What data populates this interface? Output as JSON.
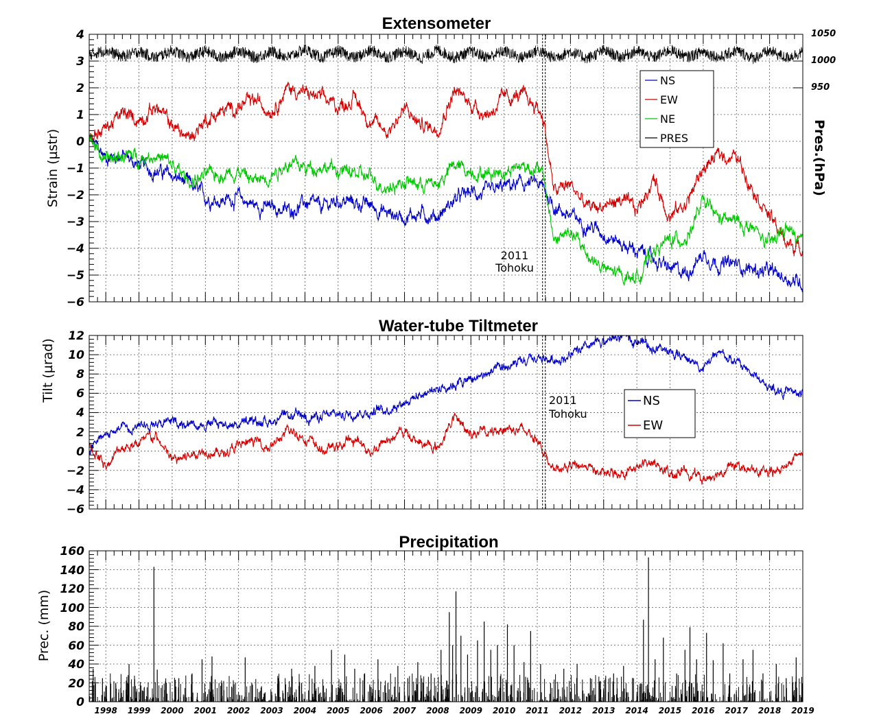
{
  "chart_data": [
    {
      "type": "line",
      "title": "Extensometer",
      "ylabel": "Strain (µstr)",
      "y2label": "Pres.(hPa)",
      "ylim": [
        -6,
        4
      ],
      "y2lim": [
        910,
        1050
      ],
      "xlim": [
        1997.5,
        2019.0
      ],
      "grid": true,
      "legend_position": "top-right",
      "y_ticks": [
        "4",
        "3",
        "2",
        "1",
        "0",
        "−1",
        "−2",
        "−3",
        "−4",
        "−5",
        "−6"
      ],
      "y2_ticks": [
        "1050",
        "1000",
        "950"
      ],
      "annotation": {
        "line1": "2011",
        "line2": "Tohoku",
        "x": 2011.2
      },
      "series": [
        {
          "name": "NS",
          "color": "#0000c8",
          "x": [
            1997.5,
            1998.0,
            1998.5,
            1999.0,
            1999.5,
            2000.0,
            2000.5,
            2001.0,
            2001.5,
            2002.0,
            2002.5,
            2003.0,
            2003.5,
            2004.0,
            2004.5,
            2005.0,
            2005.5,
            2006.0,
            2006.5,
            2007.0,
            2007.5,
            2008.0,
            2008.5,
            2009.0,
            2009.5,
            2010.0,
            2010.5,
            2011.0,
            2011.2,
            2011.5,
            2012.0,
            2012.5,
            2013.0,
            2013.5,
            2014.0,
            2014.5,
            2015.0,
            2015.5,
            2016.0,
            2016.5,
            2017.0,
            2017.5,
            2018.0,
            2018.5,
            2019.0
          ],
          "y": [
            0.1,
            -0.6,
            -0.5,
            -0.9,
            -1.1,
            -1.3,
            -1.6,
            -2.1,
            -2.2,
            -2.1,
            -2.4,
            -2.5,
            -2.6,
            -2.3,
            -2.5,
            -2.2,
            -2.3,
            -2.4,
            -2.7,
            -2.8,
            -2.7,
            -2.8,
            -2.2,
            -1.9,
            -2.0,
            -1.7,
            -1.6,
            -1.6,
            -1.8,
            -2.4,
            -2.8,
            -3.1,
            -3.4,
            -3.8,
            -4.1,
            -4.4,
            -4.8,
            -4.9,
            -4.2,
            -4.6,
            -4.6,
            -4.8,
            -4.9,
            -5.1,
            -5.3
          ]
        },
        {
          "name": "EW",
          "color": "#d20000",
          "x": [
            1997.5,
            1998.0,
            1998.5,
            1999.0,
            1999.5,
            2000.0,
            2000.5,
            2001.0,
            2001.5,
            2002.0,
            2002.5,
            2003.0,
            2003.5,
            2004.0,
            2004.5,
            2005.0,
            2005.5,
            2006.0,
            2006.5,
            2007.0,
            2007.5,
            2008.0,
            2008.5,
            2009.0,
            2009.5,
            2010.0,
            2010.5,
            2011.0,
            2011.2,
            2011.5,
            2012.0,
            2012.5,
            2013.0,
            2013.5,
            2014.0,
            2014.5,
            2015.0,
            2015.5,
            2016.0,
            2016.5,
            2017.0,
            2017.5,
            2018.0,
            2018.5,
            2019.0
          ],
          "y": [
            0.2,
            0.5,
            1.0,
            0.8,
            1.3,
            0.6,
            0.1,
            0.8,
            1.1,
            1.3,
            1.5,
            1.2,
            2.0,
            1.8,
            1.6,
            1.3,
            1.6,
            0.7,
            0.4,
            1.2,
            0.6,
            0.5,
            1.9,
            1.4,
            1.0,
            1.6,
            1.7,
            1.3,
            0.8,
            -1.9,
            -1.6,
            -2.5,
            -2.4,
            -2.2,
            -2.6,
            -1.4,
            -2.8,
            -2.3,
            -1.0,
            -0.5,
            -0.6,
            -1.7,
            -2.8,
            -3.8,
            -4.0
          ]
        },
        {
          "name": "NE",
          "color": "#00c800",
          "x": [
            1997.5,
            1998.0,
            1998.5,
            1999.0,
            1999.5,
            2000.0,
            2000.5,
            2001.0,
            2001.5,
            2002.0,
            2002.5,
            2003.0,
            2003.5,
            2004.0,
            2004.5,
            2005.0,
            2005.5,
            2006.0,
            2006.5,
            2007.0,
            2007.5,
            2008.0,
            2008.5,
            2009.0,
            2009.5,
            2010.0,
            2010.5,
            2011.0,
            2011.2,
            2011.5,
            2012.0,
            2012.5,
            2013.0,
            2013.5,
            2014.0,
            2014.5,
            2015.0,
            2015.5,
            2016.0,
            2016.5,
            2017.0,
            2017.5,
            2018.0,
            2018.5,
            2019.0
          ],
          "y": [
            0.2,
            -0.8,
            -0.5,
            -0.6,
            -0.5,
            -0.9,
            -1.5,
            -1.3,
            -1.2,
            -1.1,
            -1.5,
            -1.2,
            -0.8,
            -1.0,
            -0.9,
            -1.1,
            -1.2,
            -1.4,
            -1.7,
            -1.5,
            -1.6,
            -1.6,
            -0.9,
            -1.1,
            -1.2,
            -1.1,
            -0.9,
            -1.0,
            -1.4,
            -3.7,
            -3.4,
            -4.2,
            -4.8,
            -5.0,
            -5.1,
            -4.1,
            -3.7,
            -3.6,
            -2.3,
            -2.9,
            -3.0,
            -3.3,
            -3.9,
            -3.2,
            -3.9
          ]
        },
        {
          "name": "PRES",
          "color": "#000000",
          "axis": "right",
          "x": [
            1997.5,
            1998.0,
            1998.5,
            1999.0,
            1999.5,
            2000.0,
            2000.5,
            2001.0,
            2001.5,
            2002.0,
            2002.5,
            2003.0,
            2003.5,
            2004.0,
            2004.5,
            2005.0,
            2005.5,
            2006.0,
            2006.5,
            2007.0,
            2007.5,
            2008.0,
            2008.5,
            2009.0,
            2009.5,
            2010.0,
            2010.5,
            2011.0,
            2011.5,
            2012.0,
            2012.5,
            2013.0,
            2013.5,
            2014.0,
            2014.5,
            2015.0,
            2015.5,
            2016.0,
            2016.5,
            2017.0,
            2017.5,
            2018.0,
            2018.5,
            2019.0
          ],
          "y": [
            1012,
            1020,
            1008,
            1018,
            1006,
            1020,
            1007,
            1019,
            1005,
            1021,
            1006,
            1018,
            1007,
            1022,
            1006,
            1019,
            1006,
            1020,
            1007,
            1019,
            1005,
            1021,
            1006,
            1018,
            1007,
            1019,
            1006,
            1020,
            1006,
            1018,
            1005,
            1020,
            1007,
            1019,
            1006,
            1021,
            1007,
            1018,
            1006,
            1020,
            1005,
            1019,
            1006,
            1017
          ]
        }
      ]
    },
    {
      "type": "line",
      "title": "Water-tube Tiltmeter",
      "ylabel": "Tilt (µrad)",
      "ylim": [
        -6,
        12
      ],
      "xlim": [
        1997.5,
        2019.0
      ],
      "grid": true,
      "legend_position": "middle-right",
      "y_ticks": [
        "12",
        "10",
        "8",
        "6",
        "4",
        "2",
        "0",
        "−2",
        "−4",
        "−6"
      ],
      "annotation": {
        "line1": "2011",
        "line2": "Tohoku",
        "x": 2011.2
      },
      "series": [
        {
          "name": "NS",
          "color": "#0000c8",
          "x": [
            1997.5,
            1998.0,
            1998.5,
            1999.0,
            1999.5,
            2000.0,
            2000.5,
            2001.0,
            2001.5,
            2002.0,
            2002.5,
            2003.0,
            2003.5,
            2004.0,
            2004.5,
            2005.0,
            2005.5,
            2006.0,
            2006.5,
            2007.0,
            2007.5,
            2008.0,
            2008.5,
            2009.0,
            2009.5,
            2010.0,
            2010.5,
            2011.0,
            2011.5,
            2012.0,
            2012.5,
            2013.0,
            2013.5,
            2014.0,
            2014.5,
            2015.0,
            2015.5,
            2016.0,
            2016.5,
            2017.0,
            2017.5,
            2018.0,
            2018.5,
            2019.0
          ],
          "y": [
            0.1,
            1.6,
            2.5,
            2.8,
            3.0,
            3.0,
            3.0,
            2.8,
            2.9,
            2.8,
            3.0,
            3.2,
            3.5,
            3.7,
            3.5,
            3.8,
            4.0,
            4.1,
            4.4,
            5.2,
            5.9,
            6.6,
            7.0,
            7.4,
            8.0,
            8.6,
            9.0,
            9.6,
            9.5,
            9.9,
            10.6,
            11.4,
            11.8,
            11.6,
            10.8,
            10.2,
            9.7,
            8.6,
            10.2,
            9.2,
            8.0,
            6.5,
            6.2,
            5.9
          ]
        },
        {
          "name": "EW",
          "color": "#d20000",
          "x": [
            1997.5,
            1998.0,
            1998.5,
            1999.0,
            1999.5,
            2000.0,
            2000.5,
            2001.0,
            2001.5,
            2002.0,
            2002.5,
            2003.0,
            2003.5,
            2004.0,
            2004.5,
            2005.0,
            2005.5,
            2006.0,
            2006.5,
            2007.0,
            2007.5,
            2008.0,
            2008.5,
            2009.0,
            2009.5,
            2010.0,
            2010.5,
            2011.0,
            2011.2,
            2011.5,
            2012.0,
            2012.5,
            2013.0,
            2013.5,
            2014.0,
            2014.5,
            2015.0,
            2015.5,
            2016.0,
            2016.5,
            2017.0,
            2017.5,
            2018.0,
            2018.5,
            2019.0
          ],
          "y": [
            0.5,
            -1.5,
            0.5,
            0.8,
            1.5,
            -1.0,
            -0.5,
            0.2,
            -0.3,
            0.5,
            1.0,
            0.5,
            2.0,
            1.5,
            0.0,
            0.5,
            1.2,
            0.0,
            1.2,
            2.0,
            0.8,
            0.3,
            3.5,
            2.0,
            1.8,
            2.5,
            2.2,
            1.5,
            0.0,
            -2.2,
            -1.5,
            -1.5,
            -2.5,
            -2.2,
            -1.8,
            -1.0,
            -2.5,
            -2.0,
            -3.0,
            -2.0,
            -1.5,
            -2.0,
            -2.5,
            -1.5,
            0.0
          ]
        }
      ]
    },
    {
      "type": "bar",
      "title": "Precipitation",
      "ylabel": "Prec. (mm)",
      "ylim": [
        0,
        160
      ],
      "xlim": [
        1997.5,
        2019.0
      ],
      "grid": true,
      "y_ticks": [
        "160",
        "140",
        "120",
        "100",
        "80",
        "60",
        "40",
        "20",
        "0"
      ],
      "x_ticks": [
        "1998",
        "1999",
        "2000",
        "2001",
        "2002",
        "2003",
        "2004",
        "2005",
        "2006",
        "2007",
        "2008",
        "2009",
        "2010",
        "2011",
        "2012",
        "2013",
        "2014",
        "2015",
        "2016",
        "2017",
        "2018",
        "2019"
      ],
      "x": [
        1997.62,
        1997.9,
        1998.3,
        1998.7,
        1999.1,
        1999.45,
        1999.55,
        1999.8,
        2000.2,
        2000.6,
        2000.9,
        2001.2,
        2001.5,
        2001.8,
        2002.2,
        2002.4,
        2002.8,
        2003.2,
        2003.6,
        2003.9,
        2004.3,
        2004.6,
        2004.8,
        2005.2,
        2005.5,
        2005.8,
        2006.2,
        2006.5,
        2006.8,
        2007.1,
        2007.4,
        2007.8,
        2008.1,
        2008.35,
        2008.45,
        2008.55,
        2008.7,
        2008.9,
        2009.2,
        2009.4,
        2009.6,
        2009.8,
        2010.1,
        2010.3,
        2010.6,
        2010.8,
        2011.1,
        2011.4,
        2011.8,
        2012.2,
        2012.6,
        2012.9,
        2013.3,
        2013.6,
        2013.9,
        2014.2,
        2014.35,
        2014.55,
        2014.8,
        2015.2,
        2015.45,
        2015.6,
        2015.8,
        2016.1,
        2016.3,
        2016.6,
        2016.8,
        2017.2,
        2017.5,
        2017.8,
        2018.2,
        2018.5,
        2018.8
      ],
      "values": [
        35,
        25,
        20,
        40,
        12,
        143,
        34,
        22,
        25,
        30,
        45,
        48,
        20,
        15,
        47,
        20,
        10,
        25,
        35,
        20,
        38,
        10,
        55,
        50,
        35,
        30,
        45,
        20,
        38,
        25,
        42,
        30,
        55,
        95,
        60,
        117,
        70,
        50,
        65,
        85,
        55,
        60,
        82,
        60,
        42,
        75,
        40,
        20,
        35,
        40,
        25,
        22,
        30,
        38,
        25,
        87,
        153,
        45,
        68,
        30,
        55,
        79,
        45,
        73,
        44,
        62,
        30,
        45,
        55,
        30,
        40,
        25,
        47
      ]
    }
  ]
}
